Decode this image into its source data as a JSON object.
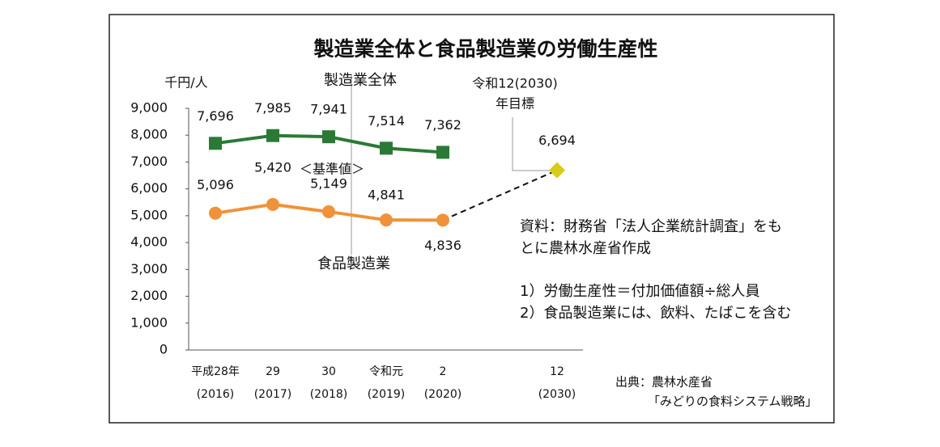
{
  "chart_data": {
    "type": "line",
    "title": "製造業全体と食品製造業の労働生産性",
    "y_label": "千円/人",
    "categories": [
      [
        "平成28年",
        "(2016)"
      ],
      [
        "29",
        "(2017)"
      ],
      [
        "30",
        "(2018)"
      ],
      [
        "令和元",
        "(2019)"
      ],
      [
        "2",
        "(2020)"
      ],
      null,
      [
        "12",
        "(2030)"
      ]
    ],
    "ylim": [
      0,
      9000
    ],
    "yticks": [
      0,
      {
        "value": 1000,
        "label": "1,000"
      },
      {
        "value": 2000,
        "label": "2,000"
      },
      {
        "value": 3000,
        "label": "3,000"
      },
      {
        "value": 4000,
        "label": "4,000"
      },
      {
        "value": 5000,
        "label": "5,000"
      },
      {
        "value": 6000,
        "label": "6,000"
      },
      {
        "value": 7000,
        "label": "7,000"
      },
      {
        "value": 8000,
        "label": "8,000"
      },
      {
        "value": 9000,
        "label": "9,000"
      }
    ],
    "series": [
      {
        "name": "製造業全体",
        "color": "#2a7a35",
        "marker": "square",
        "values": [
          7696,
          7985,
          7941,
          7514,
          7362,
          null,
          null
        ],
        "value_labels": [
          "7,696",
          "7,985",
          "7,941",
          "7,514",
          "7,362",
          null,
          null
        ]
      },
      {
        "name": "食品製造業",
        "color": "#f0923a",
        "marker": "circle",
        "values": [
          5096,
          5420,
          5149,
          4841,
          4836,
          null,
          null
        ],
        "value_labels": [
          "5,096",
          "5,420",
          "5,149",
          "4,841",
          "4,836",
          null,
          null
        ]
      },
      {
        "color": "#d8cc1a",
        "marker": "diamond",
        "values": [
          null,
          null,
          null,
          null,
          null,
          null,
          6694
        ],
        "value_labels": [
          null,
          null,
          null,
          null,
          null,
          null,
          "6,694"
        ]
      }
    ],
    "target_label": [
      "令和12(2030)",
      "年目標"
    ],
    "baseline_label": "＜基準値＞",
    "notes": [
      "資料：財務省「法人企業統計調査」をも",
      "とに農林水産省作成",
      "1）労働生産性＝付加価値額÷総人員",
      "2）食品製造業には、飲料、たばこを含む"
    ],
    "source": [
      "出典：農林水産省",
      "「みどりの食料システム戦略」"
    ]
  }
}
